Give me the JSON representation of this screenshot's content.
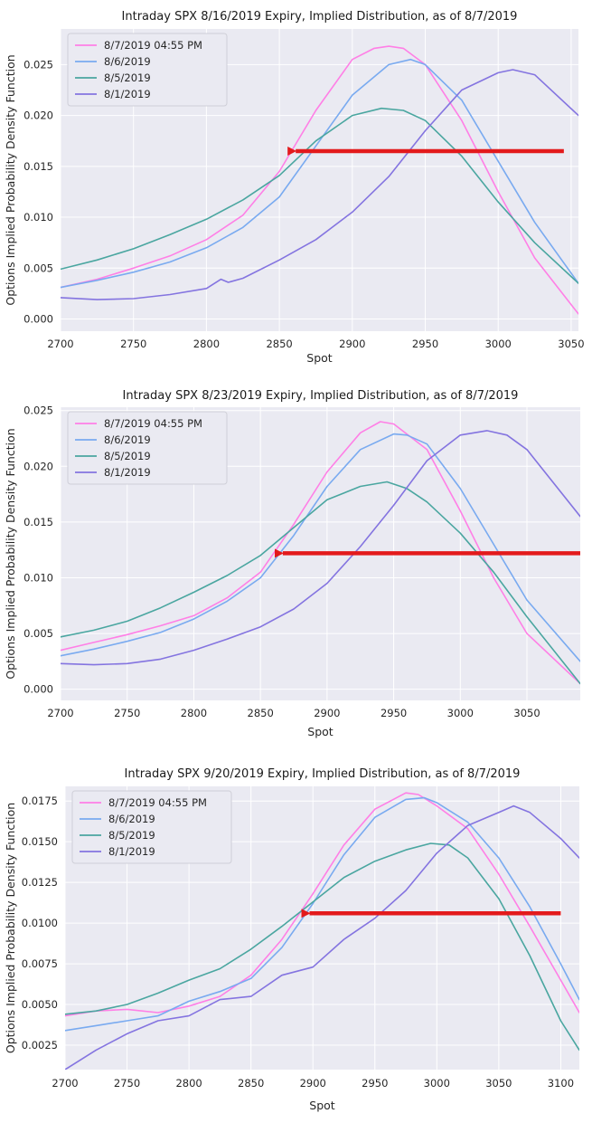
{
  "series_colors": [
    "#ff7fe6",
    "#79aaf0",
    "#4aa6a0",
    "#8474e0"
  ],
  "arrow_color": "#e31a1c",
  "chart_data": [
    {
      "type": "line",
      "title": "Intraday SPX 8/16/2019 Expiry, Implied Distribution, as of 8/7/2019",
      "xlabel": "Spot",
      "ylabel": "Options Implied Probability Density Function",
      "xlim": [
        2700,
        3055
      ],
      "ylim": [
        -0.0012,
        0.0285
      ],
      "xticks": [
        "2700",
        "2750",
        "2800",
        "2850",
        "2900",
        "2950",
        "3000",
        "3050"
      ],
      "yticks": [
        "0.000",
        "0.005",
        "0.010",
        "0.015",
        "0.020",
        "0.025"
      ],
      "legend_position": "upper left",
      "annotation": "arrow",
      "arrow": {
        "from": [
          3045,
          0.0165
        ],
        "to": [
          2855,
          0.0165
        ]
      },
      "series": [
        {
          "name": "8/7/2019 04:55 PM",
          "x": [
            2700,
            2725,
            2750,
            2775,
            2800,
            2825,
            2850,
            2875,
            2900,
            2915,
            2925,
            2935,
            2950,
            2975,
            3000,
            3025,
            3055
          ],
          "y": [
            0.0031,
            0.0039,
            0.005,
            0.0062,
            0.0078,
            0.0102,
            0.0145,
            0.0205,
            0.0255,
            0.0266,
            0.0268,
            0.0266,
            0.025,
            0.0195,
            0.0125,
            0.006,
            0.0005
          ]
        },
        {
          "name": "8/6/2019",
          "x": [
            2700,
            2725,
            2750,
            2775,
            2800,
            2825,
            2850,
            2875,
            2900,
            2925,
            2940,
            2950,
            2975,
            3000,
            3025,
            3055
          ],
          "y": [
            0.0031,
            0.0038,
            0.0046,
            0.0056,
            0.007,
            0.009,
            0.012,
            0.017,
            0.022,
            0.025,
            0.0255,
            0.025,
            0.0215,
            0.0155,
            0.0095,
            0.0035
          ]
        },
        {
          "name": "8/5/2019",
          "x": [
            2700,
            2725,
            2750,
            2775,
            2800,
            2825,
            2850,
            2875,
            2900,
            2920,
            2935,
            2950,
            2975,
            3000,
            3025,
            3055
          ],
          "y": [
            0.0049,
            0.0058,
            0.0069,
            0.0083,
            0.0098,
            0.0117,
            0.0141,
            0.0175,
            0.02,
            0.0207,
            0.0205,
            0.0195,
            0.016,
            0.0115,
            0.0075,
            0.0035
          ]
        },
        {
          "name": "8/1/2019",
          "x": [
            2700,
            2725,
            2750,
            2775,
            2800,
            2810,
            2815,
            2825,
            2850,
            2875,
            2900,
            2925,
            2950,
            2975,
            3000,
            3010,
            3025,
            3055
          ],
          "y": [
            0.0021,
            0.0019,
            0.002,
            0.0024,
            0.003,
            0.0039,
            0.0036,
            0.004,
            0.0058,
            0.0078,
            0.0105,
            0.014,
            0.0185,
            0.0225,
            0.0242,
            0.0245,
            0.024,
            0.02
          ]
        }
      ]
    },
    {
      "type": "line",
      "title": "Intraday SPX 8/23/2019 Expiry, Implied Distribution, as of 8/7/2019",
      "xlabel": "Spot",
      "ylabel": "Options Implied Probability Density Function",
      "xlim": [
        2700,
        3090
      ],
      "ylim": [
        -0.001,
        0.0253
      ],
      "xticks": [
        "2700",
        "2750",
        "2800",
        "2850",
        "2900",
        "2950",
        "3000",
        "3050"
      ],
      "yticks": [
        "0.000",
        "0.005",
        "0.010",
        "0.015",
        "0.020",
        "0.025"
      ],
      "legend_position": "upper left",
      "annotation": "arrow",
      "arrow": {
        "from": [
          3090,
          0.0122
        ],
        "to": [
          2860,
          0.0122
        ]
      },
      "series": [
        {
          "name": "8/7/2019 04:55 PM",
          "x": [
            2700,
            2725,
            2750,
            2775,
            2800,
            2825,
            2850,
            2875,
            2900,
            2925,
            2940,
            2950,
            2975,
            3000,
            3025,
            3050,
            3090
          ],
          "y": [
            0.0035,
            0.0042,
            0.0049,
            0.0057,
            0.0066,
            0.0082,
            0.0105,
            0.0148,
            0.0195,
            0.023,
            0.024,
            0.0238,
            0.0215,
            0.016,
            0.01,
            0.005,
            0.0005
          ]
        },
        {
          "name": "8/6/2019",
          "x": [
            2700,
            2725,
            2750,
            2775,
            2800,
            2825,
            2850,
            2875,
            2900,
            2925,
            2950,
            2960,
            2975,
            3000,
            3025,
            3050,
            3090
          ],
          "y": [
            0.003,
            0.0036,
            0.0043,
            0.0051,
            0.0063,
            0.0079,
            0.01,
            0.0138,
            0.0182,
            0.0215,
            0.0229,
            0.0228,
            0.022,
            0.018,
            0.013,
            0.008,
            0.0025
          ]
        },
        {
          "name": "8/5/2019",
          "x": [
            2700,
            2725,
            2750,
            2775,
            2800,
            2825,
            2850,
            2875,
            2900,
            2925,
            2945,
            2960,
            2975,
            3000,
            3025,
            3050,
            3090
          ],
          "y": [
            0.0047,
            0.0053,
            0.0061,
            0.0073,
            0.0087,
            0.0102,
            0.012,
            0.0145,
            0.017,
            0.0182,
            0.0186,
            0.018,
            0.0168,
            0.014,
            0.0105,
            0.0065,
            0.0005
          ]
        },
        {
          "name": "8/1/2019",
          "x": [
            2700,
            2725,
            2750,
            2775,
            2800,
            2825,
            2850,
            2875,
            2900,
            2925,
            2950,
            2975,
            3000,
            3020,
            3035,
            3050,
            3090
          ],
          "y": [
            0.0023,
            0.0022,
            0.0023,
            0.0027,
            0.0035,
            0.0045,
            0.0056,
            0.0072,
            0.0095,
            0.0128,
            0.0165,
            0.0205,
            0.0228,
            0.0232,
            0.0228,
            0.0215,
            0.0155
          ]
        }
      ]
    },
    {
      "type": "line",
      "title": "Intraday SPX 9/20/2019 Expiry, Implied Distribution, as of 8/7/2019",
      "xlabel": "Spot",
      "ylabel": "Options Implied Probability Density Function",
      "xlim": [
        2700,
        3115
      ],
      "ylim": [
        0.001,
        0.0184
      ],
      "xticks": [
        "2700",
        "2750",
        "2800",
        "2850",
        "2900",
        "2950",
        "3000",
        "3050",
        "3100"
      ],
      "yticks": [
        "0.0025",
        "0.0050",
        "0.0075",
        "0.0100",
        "0.0125",
        "0.0150",
        "0.0175"
      ],
      "legend_position": "upper left",
      "annotation": "arrow",
      "arrow": {
        "from": [
          3100,
          0.0106
        ],
        "to": [
          2890,
          0.0106
        ]
      },
      "series": [
        {
          "name": "8/7/2019 04:55 PM",
          "x": [
            2700,
            2725,
            2750,
            2775,
            2800,
            2825,
            2850,
            2875,
            2900,
            2925,
            2950,
            2975,
            2985,
            3000,
            3025,
            3050,
            3075,
            3100,
            3115
          ],
          "y": [
            0.0043,
            0.0046,
            0.0047,
            0.0045,
            0.0049,
            0.0055,
            0.0068,
            0.009,
            0.0118,
            0.0148,
            0.017,
            0.018,
            0.0179,
            0.0172,
            0.0158,
            0.013,
            0.0098,
            0.0065,
            0.0045
          ]
        },
        {
          "name": "8/6/2019",
          "x": [
            2700,
            2725,
            2750,
            2775,
            2800,
            2825,
            2850,
            2875,
            2900,
            2925,
            2950,
            2975,
            2990,
            3000,
            3025,
            3050,
            3075,
            3100,
            3115
          ],
          "y": [
            0.0034,
            0.0037,
            0.004,
            0.0043,
            0.0052,
            0.0058,
            0.0066,
            0.0085,
            0.0112,
            0.0142,
            0.0165,
            0.0176,
            0.0177,
            0.0174,
            0.0162,
            0.014,
            0.011,
            0.0075,
            0.0053
          ]
        },
        {
          "name": "8/5/2019",
          "x": [
            2700,
            2725,
            2750,
            2775,
            2800,
            2825,
            2850,
            2875,
            2900,
            2925,
            2950,
            2975,
            2995,
            3010,
            3025,
            3050,
            3075,
            3100,
            3115
          ],
          "y": [
            0.0044,
            0.0046,
            0.005,
            0.0057,
            0.0065,
            0.0072,
            0.0084,
            0.0098,
            0.0113,
            0.0128,
            0.0138,
            0.0145,
            0.0149,
            0.0148,
            0.014,
            0.0115,
            0.008,
            0.004,
            0.0022
          ]
        },
        {
          "name": "8/1/2019",
          "x": [
            2700,
            2725,
            2750,
            2775,
            2800,
            2825,
            2850,
            2875,
            2900,
            2925,
            2950,
            2975,
            3000,
            3025,
            3050,
            3062,
            3075,
            3100,
            3115
          ],
          "y": [
            0.001,
            0.0022,
            0.0032,
            0.004,
            0.0043,
            0.0053,
            0.0055,
            0.0068,
            0.0073,
            0.009,
            0.0103,
            0.012,
            0.0143,
            0.016,
            0.0168,
            0.0172,
            0.0168,
            0.0152,
            0.014
          ]
        }
      ]
    }
  ]
}
